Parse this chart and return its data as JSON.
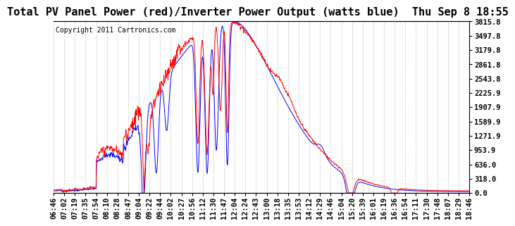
{
  "title": "Total PV Panel Power (red)/Inverter Power Output (watts blue)  Thu Sep 8 18:55",
  "copyright": "Copyright 2011 Cartronics.com",
  "ylabel_right_ticks": [
    0.0,
    318.0,
    636.0,
    953.9,
    1271.9,
    1589.9,
    1907.9,
    2225.9,
    2543.8,
    2861.8,
    3179.8,
    3497.8,
    3815.8
  ],
  "ymin": 0.0,
  "ymax": 3815.8,
  "xtick_labels": [
    "06:46",
    "07:02",
    "07:19",
    "07:35",
    "07:54",
    "08:10",
    "08:28",
    "08:47",
    "09:04",
    "09:22",
    "09:44",
    "10:02",
    "10:27",
    "10:56",
    "11:12",
    "11:30",
    "11:47",
    "12:04",
    "12:24",
    "12:43",
    "13:00",
    "13:18",
    "13:35",
    "13:53",
    "14:12",
    "14:29",
    "14:46",
    "15:04",
    "15:20",
    "15:39",
    "16:01",
    "16:19",
    "16:36",
    "16:54",
    "17:11",
    "17:30",
    "17:48",
    "18:07",
    "18:29",
    "18:46"
  ],
  "bg_color": "#ffffff",
  "grid_color": "#aaaaaa",
  "red_color": "#ff0000",
  "blue_color": "#0000ff",
  "title_fontsize": 11,
  "copyright_fontsize": 7,
  "tick_fontsize": 7.5
}
